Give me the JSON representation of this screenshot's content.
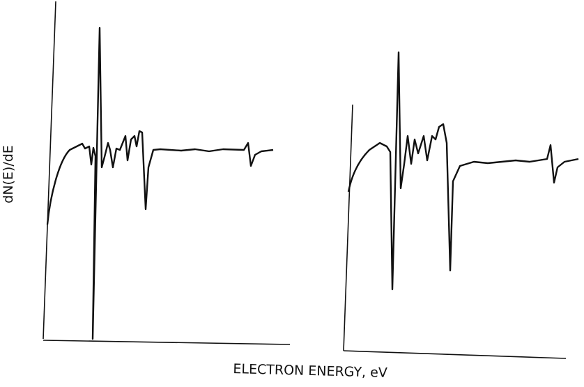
{
  "chart_data": {
    "type": "line",
    "ylabel": "dN(E)/dE",
    "xlabel": "ELECTRON ENERGY, eV"
  }
}
